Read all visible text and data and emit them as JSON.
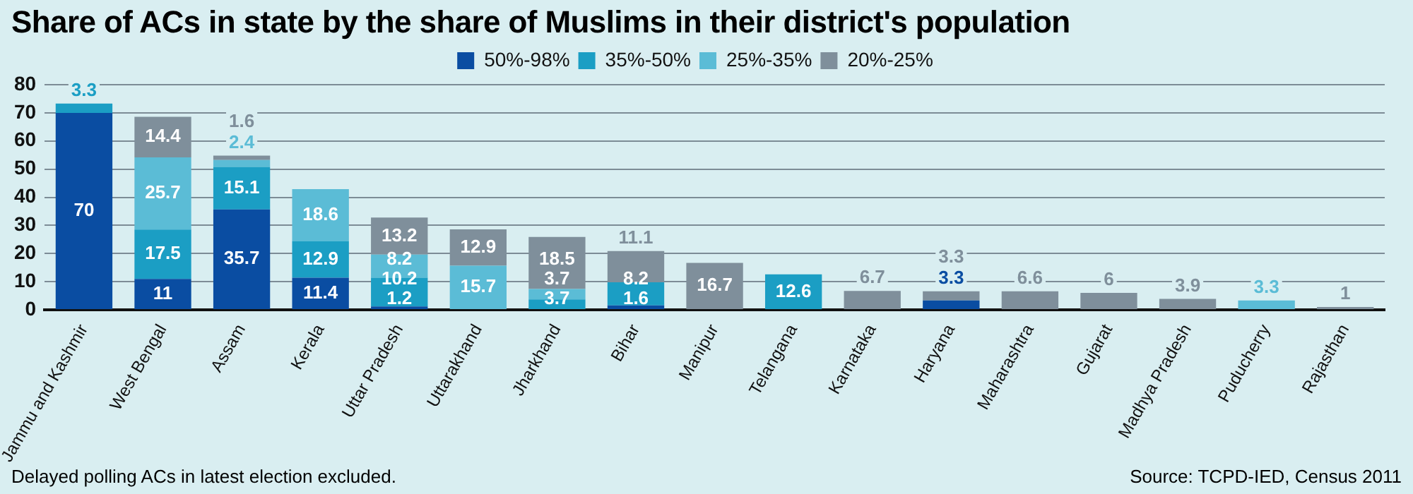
{
  "chart_data": {
    "type": "bar",
    "stacked": true,
    "title": "Share of ACs in state by the share of Muslims in their district's population",
    "categories": [
      "Jammu and Kashmir",
      "West Bengal",
      "Assam",
      "Kerala",
      "Uttar Pradesh",
      "Uttarakhand",
      "Jharkhand",
      "Bihar",
      "Manipur",
      "Telangana",
      "Karnataka",
      "Haryana",
      "Maharashtra",
      "Gujarat",
      "Madhya Pradesh",
      "Puducherry",
      "Rajasthan"
    ],
    "series": [
      {
        "name": "50%-98%",
        "color": "#0a4da2",
        "values": [
          70,
          11,
          35.7,
          11.4,
          1.2,
          null,
          null,
          1.6,
          null,
          null,
          null,
          3.3,
          null,
          null,
          null,
          null,
          null
        ]
      },
      {
        "name": "35%-50%",
        "color": "#1b9ec4",
        "values": [
          3.3,
          17.5,
          15.1,
          12.9,
          10.2,
          null,
          3.7,
          8.2,
          null,
          12.6,
          null,
          null,
          null,
          null,
          null,
          null,
          null
        ]
      },
      {
        "name": "25%-35%",
        "color": "#5bbcd6",
        "values": [
          null,
          25.7,
          2.4,
          18.6,
          8.2,
          15.7,
          3.7,
          null,
          null,
          null,
          null,
          null,
          null,
          null,
          null,
          3.3,
          null
        ]
      },
      {
        "name": "20%-25%",
        "color": "#7f8f9b",
        "values": [
          null,
          14.4,
          1.6,
          null,
          13.2,
          12.9,
          18.5,
          11.1,
          16.7,
          null,
          6.7,
          3.3,
          6.6,
          6,
          3.9,
          null,
          1
        ]
      }
    ],
    "ylim": [
      0,
      80
    ],
    "yticks": [
      0,
      10,
      20,
      30,
      40,
      50,
      60,
      70,
      80
    ],
    "grid": "y",
    "legend": "top",
    "data_labels": true,
    "annotations": [
      "Delayed polling ACs in latest election excluded.",
      "Source: TCPD-IED, Census 2011"
    ]
  }
}
